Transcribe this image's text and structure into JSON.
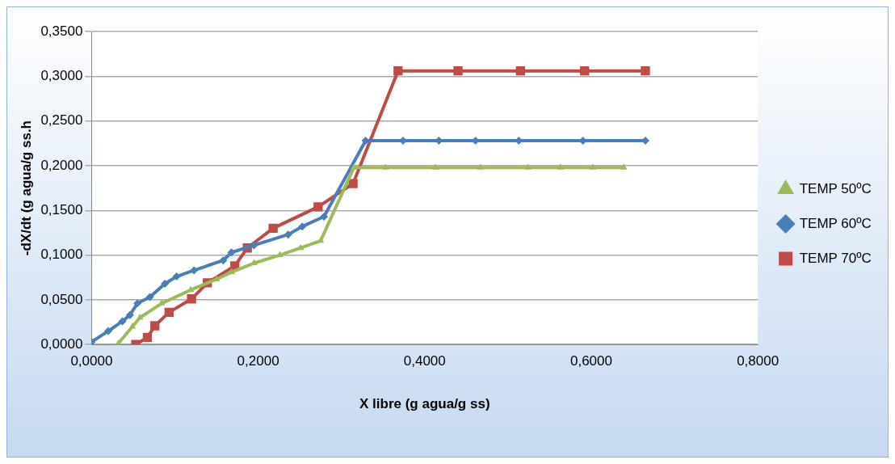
{
  "chart_data": {
    "type": "line",
    "xlabel": "X libre (g agua/g ss)",
    "ylabel": "-dX/dt (g agua/g ss.h",
    "xlim": [
      0,
      0.8
    ],
    "xticks": [
      {
        "value": 0,
        "label": "0,0000"
      },
      {
        "value": 0.2,
        "label": "0,2000"
      },
      {
        "value": 0.4,
        "label": "0,4000"
      },
      {
        "value": 0.6,
        "label": "0,6000"
      },
      {
        "value": 0.8,
        "label": "0,8000"
      }
    ],
    "ylim": [
      0,
      0.35
    ],
    "yticks": [
      {
        "value": 0,
        "label": "0,0000"
      },
      {
        "value": 0.05,
        "label": "0,0500"
      },
      {
        "value": 0.1,
        "label": "0,1000"
      },
      {
        "value": 0.15,
        "label": "0,1500"
      },
      {
        "value": 0.2,
        "label": "0,2000"
      },
      {
        "value": 0.25,
        "label": "0,2500"
      },
      {
        "value": 0.3,
        "label": "0,3000"
      },
      {
        "value": 0.35,
        "label": "0,3500"
      }
    ],
    "grid": "y",
    "legend": "right",
    "series": [
      {
        "name": "TEMP 50ºC",
        "color": "#9bbb59",
        "marker": "triangle",
        "x": [
          0.032,
          0.049,
          0.058,
          0.084,
          0.119,
          0.15,
          0.168,
          0.195,
          0.226,
          0.251,
          0.275,
          0.315,
          0.353,
          0.413,
          0.467,
          0.524,
          0.563,
          0.602,
          0.639
        ],
        "values": [
          0.001,
          0.02,
          0.03,
          0.046,
          0.061,
          0.073,
          0.081,
          0.091,
          0.1,
          0.108,
          0.116,
          0.198,
          0.198,
          0.198,
          0.198,
          0.198,
          0.198,
          0.198,
          0.198
        ]
      },
      {
        "name": "TEMP 60ºC",
        "color": "#4a7ebb",
        "marker": "diamond",
        "x": [
          0,
          0.02,
          0.037,
          0.046,
          0.055,
          0.07,
          0.088,
          0.102,
          0.123,
          0.158,
          0.168,
          0.195,
          0.236,
          0.253,
          0.279,
          0.329,
          0.374,
          0.417,
          0.461,
          0.513,
          0.59,
          0.665
        ],
        "values": [
          0.003,
          0.015,
          0.026,
          0.033,
          0.046,
          0.053,
          0.068,
          0.076,
          0.083,
          0.094,
          0.103,
          0.111,
          0.123,
          0.132,
          0.143,
          0.228,
          0.228,
          0.228,
          0.228,
          0.228,
          0.228,
          0.228
        ]
      },
      {
        "name": "TEMP 70ºC",
        "color": "#be4b48",
        "marker": "square",
        "x": [
          0.053,
          0.067,
          0.076,
          0.093,
          0.12,
          0.139,
          0.172,
          0.187,
          0.218,
          0.272,
          0.314,
          0.368,
          0.44,
          0.515,
          0.592,
          0.665
        ],
        "values": [
          0.0,
          0.008,
          0.021,
          0.036,
          0.051,
          0.069,
          0.088,
          0.108,
          0.13,
          0.154,
          0.18,
          0.306,
          0.306,
          0.306,
          0.306,
          0.306
        ]
      }
    ]
  }
}
